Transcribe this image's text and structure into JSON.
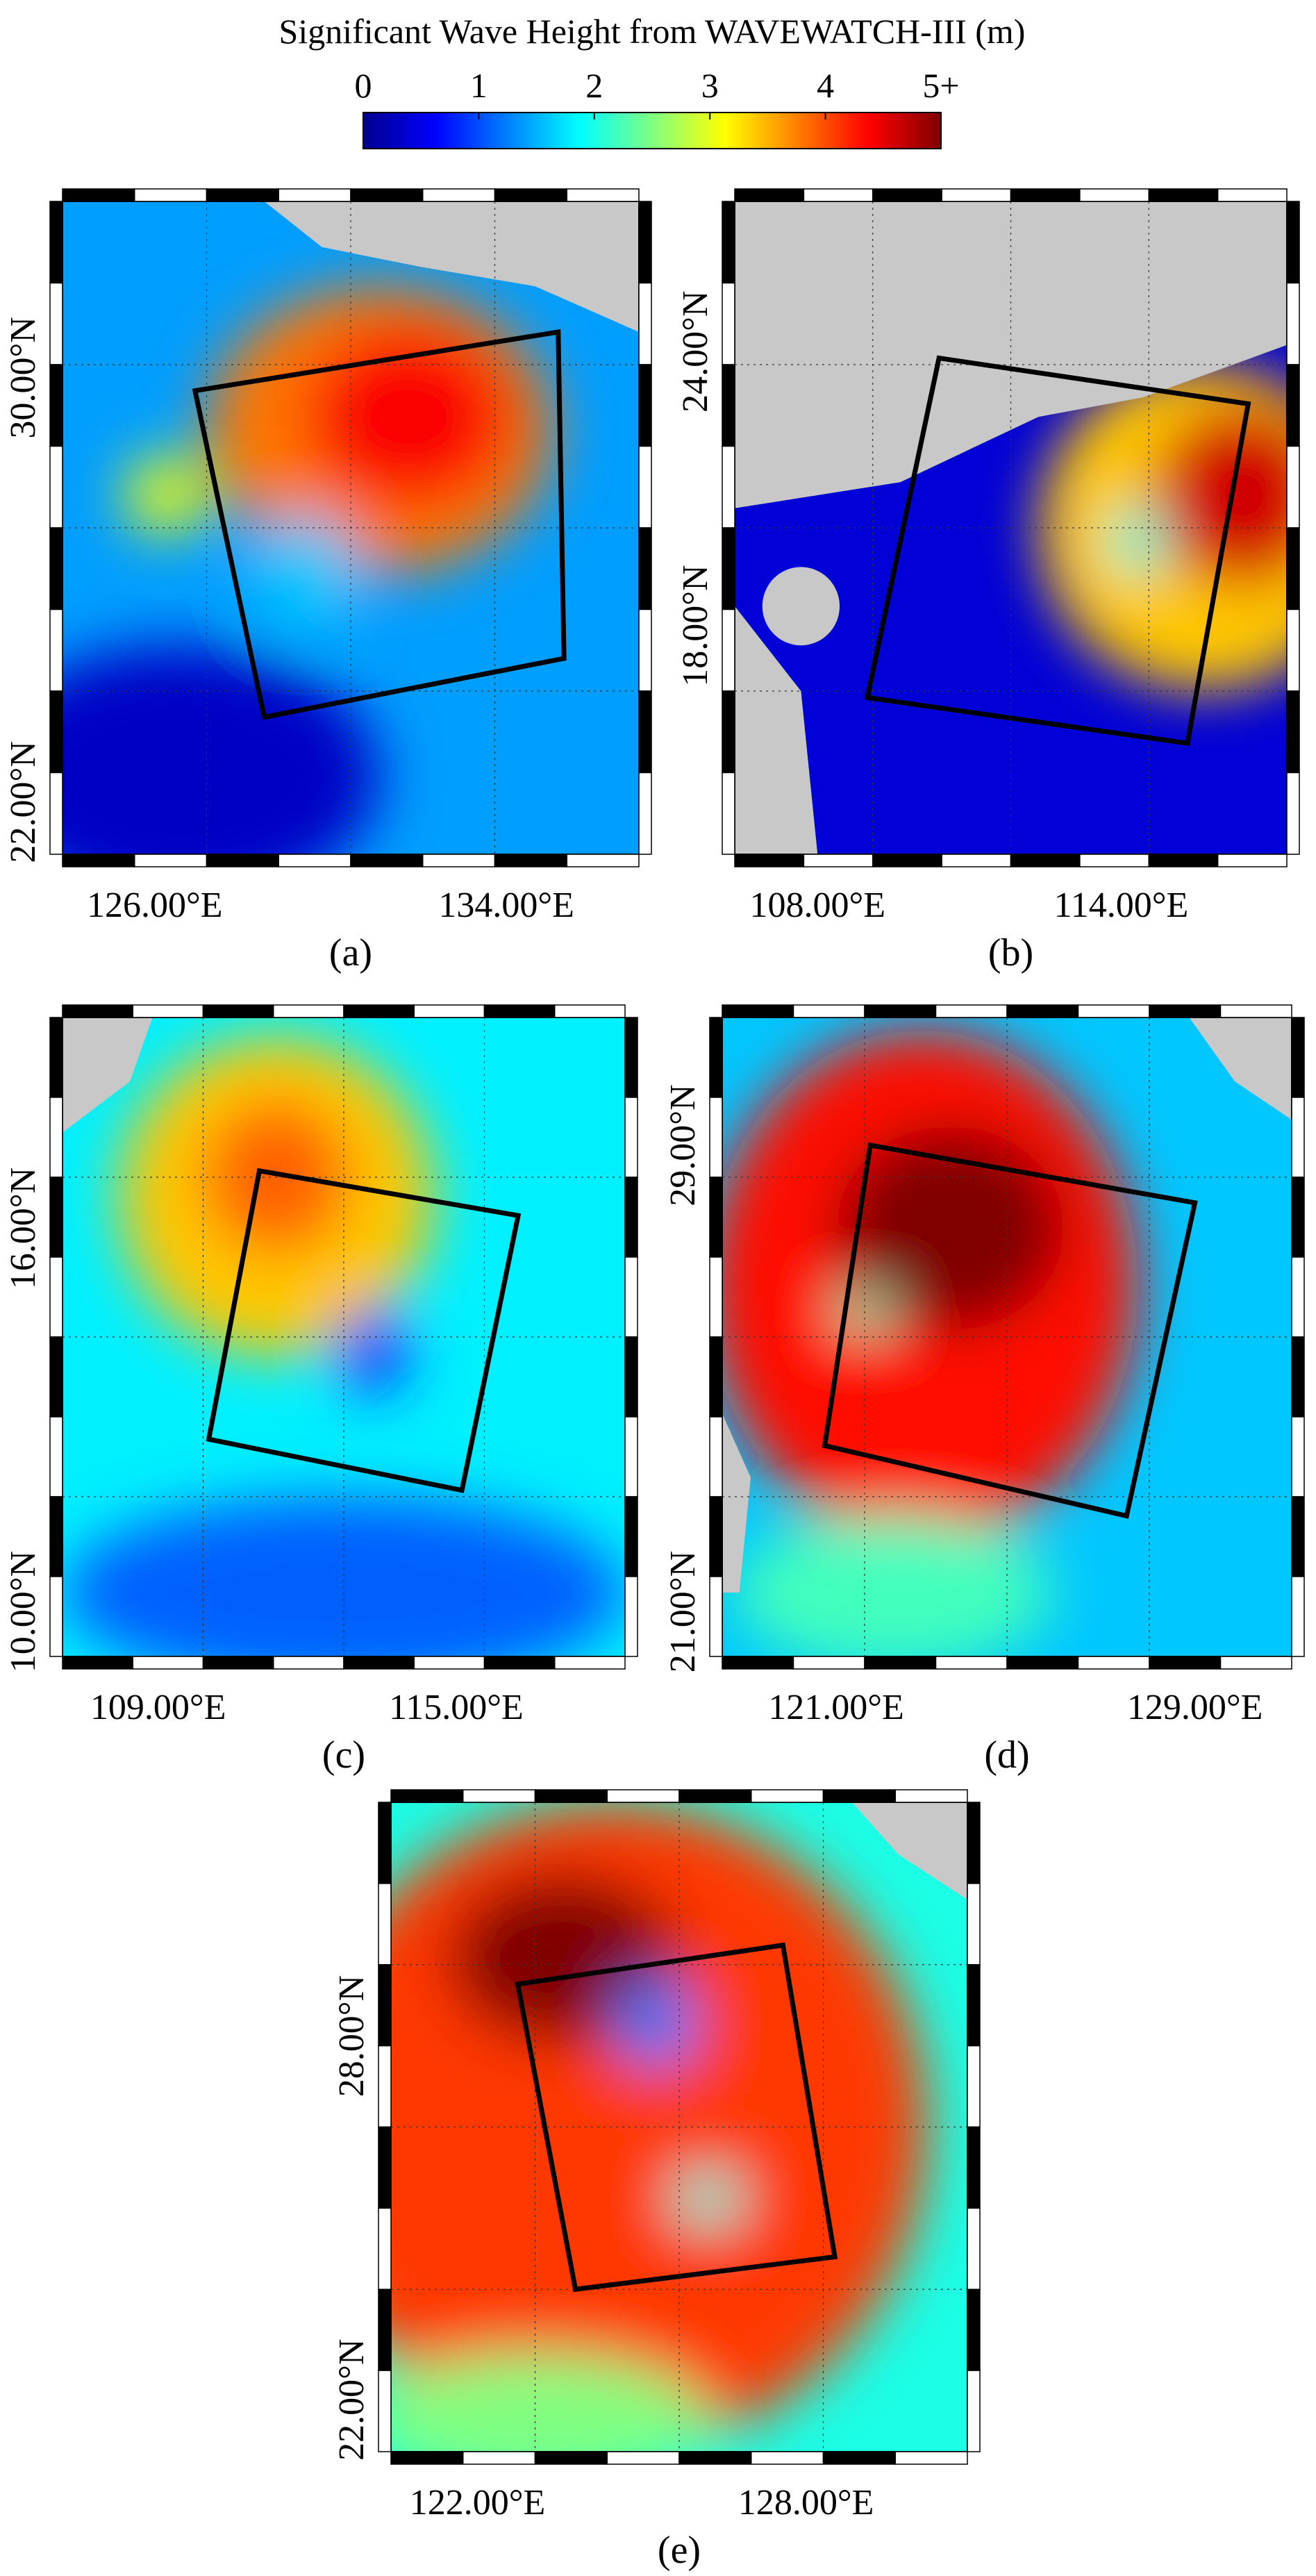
{
  "colorbar": {
    "title": "Significant Wave Height from WAVEWATCH-III (m)",
    "ticks": [
      "0",
      "1",
      "2",
      "3",
      "4",
      "5+"
    ],
    "range": [
      0,
      5
    ],
    "colormap": "jet",
    "stops": [
      "#00008f",
      "#0000ff",
      "#0080ff",
      "#00ffff",
      "#80ff80",
      "#ffff00",
      "#ff8000",
      "#ff0000",
      "#800000"
    ]
  },
  "land_color": "#c8c8c8",
  "box_color": "#000000",
  "panels": [
    {
      "label": "(a)",
      "xticks": [
        "126.00°E",
        "134.00°E"
      ],
      "yticks": [
        "30.00°N",
        "22.00°N"
      ],
      "field": [
        {
          "cx": 0.5,
          "cy": 0.5,
          "rx": 0.9,
          "ry": 0.9,
          "v": 1.4
        },
        {
          "cx": 0.55,
          "cy": 0.35,
          "rx": 0.3,
          "ry": 0.22,
          "v": 3.8
        },
        {
          "cx": 0.6,
          "cy": 0.33,
          "rx": 0.18,
          "ry": 0.14,
          "v": 4.4
        },
        {
          "cx": 0.42,
          "cy": 0.57,
          "rx": 0.09,
          "ry": 0.09,
          "v": 1.6
        },
        {
          "cx": 0.18,
          "cy": 0.45,
          "rx": 0.07,
          "ry": 0.06,
          "v": 3.1
        },
        {
          "cx": 0.2,
          "cy": 0.88,
          "rx": 0.35,
          "ry": 0.2,
          "v": 0.3
        }
      ],
      "box": [
        [
          0.23,
          0.29
        ],
        [
          0.86,
          0.2
        ],
        [
          0.87,
          0.7
        ],
        [
          0.35,
          0.79
        ]
      ]
    },
    {
      "label": "(b)",
      "xticks": [
        "108.00°E",
        "114.00°E"
      ],
      "yticks": [
        "24.00°N",
        "18.00°N"
      ],
      "field": [
        {
          "cx": 0.5,
          "cy": 0.6,
          "rx": 0.9,
          "ry": 0.6,
          "v": 0.4
        },
        {
          "cx": 0.85,
          "cy": 0.5,
          "rx": 0.3,
          "ry": 0.25,
          "v": 3.4
        },
        {
          "cx": 0.92,
          "cy": 0.45,
          "rx": 0.16,
          "ry": 0.14,
          "v": 4.6
        },
        {
          "cx": 0.73,
          "cy": 0.52,
          "rx": 0.05,
          "ry": 0.05,
          "v": 2.0
        }
      ],
      "box": [
        [
          0.37,
          0.24
        ],
        [
          0.93,
          0.31
        ],
        [
          0.82,
          0.83
        ],
        [
          0.24,
          0.76
        ]
      ]
    },
    {
      "label": "(c)",
      "xticks": [
        "109.00°E",
        "115.00°E"
      ],
      "yticks": [
        "16.00°N",
        "10.00°N"
      ],
      "field": [
        {
          "cx": 0.5,
          "cy": 0.5,
          "rx": 0.95,
          "ry": 0.95,
          "v": 1.8
        },
        {
          "cx": 0.38,
          "cy": 0.28,
          "rx": 0.28,
          "ry": 0.25,
          "v": 3.4
        },
        {
          "cx": 0.38,
          "cy": 0.25,
          "rx": 0.13,
          "ry": 0.12,
          "v": 3.9
        },
        {
          "cx": 0.55,
          "cy": 0.52,
          "rx": 0.06,
          "ry": 0.07,
          "v": 0.8
        },
        {
          "cx": 0.5,
          "cy": 0.9,
          "rx": 0.5,
          "ry": 0.15,
          "v": 1.1
        }
      ],
      "box": [
        [
          0.35,
          0.24
        ],
        [
          0.81,
          0.31
        ],
        [
          0.71,
          0.74
        ],
        [
          0.26,
          0.66
        ]
      ]
    },
    {
      "label": "(d)",
      "xticks": [
        "121.00°E",
        "129.00°E"
      ],
      "yticks": [
        "29.00°N",
        "21.00°N"
      ],
      "field": [
        {
          "cx": 0.5,
          "cy": 0.5,
          "rx": 0.95,
          "ry": 0.95,
          "v": 1.6
        },
        {
          "cx": 0.35,
          "cy": 0.42,
          "rx": 0.38,
          "ry": 0.4,
          "v": 4.3
        },
        {
          "cx": 0.4,
          "cy": 0.33,
          "rx": 0.2,
          "ry": 0.16,
          "v": 5.2
        },
        {
          "cx": 0.25,
          "cy": 0.46,
          "rx": 0.05,
          "ry": 0.03,
          "v": 2.2
        },
        {
          "cx": 0.3,
          "cy": 0.9,
          "rx": 0.28,
          "ry": 0.12,
          "v": 2.2
        }
      ],
      "box": [
        [
          0.26,
          0.2
        ],
        [
          0.83,
          0.29
        ],
        [
          0.71,
          0.78
        ],
        [
          0.18,
          0.67
        ]
      ]
    },
    {
      "label": "(e)",
      "xticks": [
        "122.00°E",
        "128.00°E"
      ],
      "yticks": [
        "28.00°N",
        "22.00°N"
      ],
      "field": [
        {
          "cx": 0.5,
          "cy": 0.5,
          "rx": 0.95,
          "ry": 0.95,
          "v": 2.0
        },
        {
          "cx": 0.38,
          "cy": 0.5,
          "rx": 0.55,
          "ry": 0.5,
          "v": 4.1
        },
        {
          "cx": 0.3,
          "cy": 0.24,
          "rx": 0.2,
          "ry": 0.13,
          "v": 5.2
        },
        {
          "cx": 0.46,
          "cy": 0.34,
          "rx": 0.07,
          "ry": 0.07,
          "v": 1.2
        },
        {
          "cx": 0.55,
          "cy": 0.61,
          "rx": 0.06,
          "ry": 0.04,
          "v": 2.0
        },
        {
          "cx": 0.25,
          "cy": 0.95,
          "rx": 0.3,
          "ry": 0.1,
          "v": 2.5
        }
      ],
      "box": [
        [
          0.22,
          0.28
        ],
        [
          0.68,
          0.22
        ],
        [
          0.77,
          0.7
        ],
        [
          0.32,
          0.75
        ]
      ]
    }
  ]
}
